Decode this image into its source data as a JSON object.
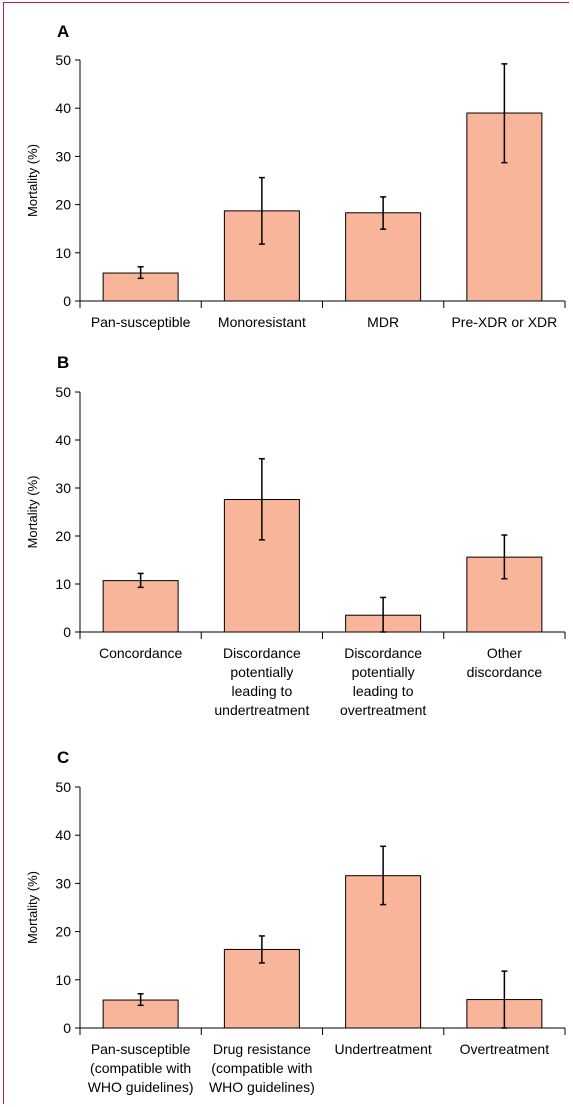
{
  "chart_data": [
    {
      "type": "bar",
      "panel": "A",
      "ylabel": "Mortality (%)",
      "ylim": [
        0,
        50
      ],
      "yticks": [
        0,
        10,
        20,
        30,
        40,
        50
      ],
      "categories": [
        [
          "Pan-susceptible"
        ],
        [
          "Monoresistant"
        ],
        [
          "MDR"
        ],
        [
          "Pre-XDR or XDR"
        ]
      ],
      "values": [
        5.8,
        18.7,
        18.3,
        39.0
      ],
      "err_low": [
        4.7,
        11.8,
        14.9,
        28.7
      ],
      "err_high": [
        7.1,
        25.6,
        21.6,
        49.2
      ],
      "bar_color": "#f9b59a"
    },
    {
      "type": "bar",
      "panel": "B",
      "ylabel": "Mortality (%)",
      "ylim": [
        0,
        50
      ],
      "yticks": [
        0,
        10,
        20,
        30,
        40,
        50
      ],
      "categories": [
        [
          "Concordance"
        ],
        [
          "Discordance",
          "potentially",
          "leading to",
          "undertreatment"
        ],
        [
          "Discordance",
          "potentially",
          "leading to",
          "overtreatment"
        ],
        [
          "Other",
          "discordance"
        ]
      ],
      "values": [
        10.7,
        27.6,
        3.5,
        15.6
      ],
      "err_low": [
        9.3,
        19.2,
        0.0,
        11.1
      ],
      "err_high": [
        12.2,
        36.1,
        7.2,
        20.2
      ],
      "bar_color": "#f9b59a"
    },
    {
      "type": "bar",
      "panel": "C",
      "ylabel": "Mortality (%)",
      "ylim": [
        0,
        50
      ],
      "yticks": [
        0,
        10,
        20,
        30,
        40,
        50
      ],
      "categories": [
        [
          "Pan-susceptible",
          "(compatible with",
          "WHO guidelines)"
        ],
        [
          "Drug resistance",
          "(compatible with",
          "WHO guidelines)"
        ],
        [
          "Undertreatment"
        ],
        [
          "Overtreatment"
        ]
      ],
      "values": [
        5.8,
        16.3,
        31.6,
        5.9
      ],
      "err_low": [
        4.7,
        13.5,
        25.6,
        0.0
      ],
      "err_high": [
        7.1,
        19.1,
        37.7,
        11.8
      ],
      "bar_color": "#f9b59a"
    }
  ],
  "colors": {
    "frame": "#c2185b",
    "bar_fill": "#f9b59a",
    "bar_stroke": "#000000"
  }
}
